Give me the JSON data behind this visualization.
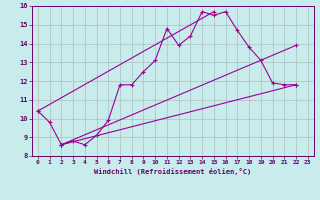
{
  "xlabel": "Windchill (Refroidissement éolien,°C)",
  "bg_color": "#c8ecec",
  "line_color": "#990099",
  "grid_color": "#b0b0b0",
  "xlim": [
    -0.5,
    23.5
  ],
  "ylim": [
    8,
    16
  ],
  "xticks": [
    0,
    1,
    2,
    3,
    4,
    5,
    6,
    7,
    8,
    9,
    10,
    11,
    12,
    13,
    14,
    15,
    16,
    17,
    18,
    19,
    20,
    21,
    22,
    23
  ],
  "yticks": [
    8,
    9,
    10,
    11,
    12,
    13,
    14,
    15,
    16
  ],
  "series": [
    {
      "x": [
        0,
        1,
        2,
        3,
        4,
        5,
        6,
        7,
        8,
        9,
        10,
        11,
        12,
        13,
        14,
        15,
        16,
        17,
        18,
        19,
        20,
        21,
        22
      ],
      "y": [
        10.4,
        9.8,
        8.6,
        8.8,
        8.6,
        9.1,
        9.9,
        11.8,
        11.8,
        12.5,
        13.1,
        14.8,
        13.9,
        14.4,
        15.7,
        15.5,
        15.7,
        14.7,
        13.8,
        13.1,
        11.9,
        11.8,
        11.8
      ]
    },
    {
      "x": [
        0,
        15
      ],
      "y": [
        10.4,
        15.7
      ]
    },
    {
      "x": [
        2,
        22
      ],
      "y": [
        8.6,
        11.8
      ]
    },
    {
      "x": [
        2,
        22
      ],
      "y": [
        8.6,
        13.9
      ]
    }
  ]
}
